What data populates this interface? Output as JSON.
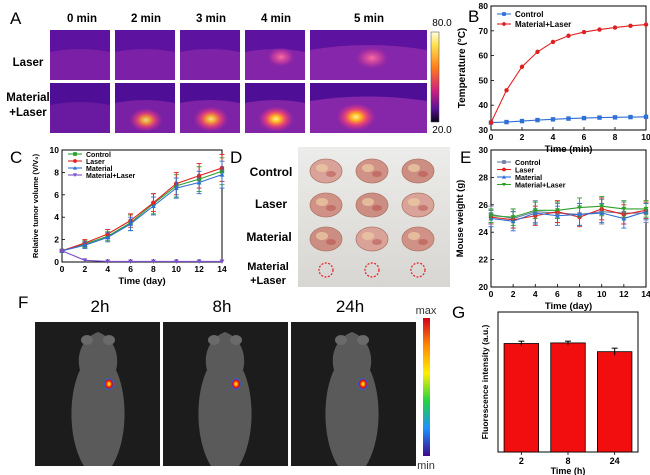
{
  "panel_letters": [
    "A",
    "B",
    "C",
    "D",
    "E",
    "F",
    "G"
  ],
  "panelA": {
    "time_labels": [
      "0 min",
      "2 min",
      "3 min",
      "4 min",
      "5 min"
    ],
    "row_labels": [
      [
        "Laser"
      ],
      [
        "Material",
        "+Laser"
      ]
    ],
    "colorbar": {
      "max": "80.0",
      "min": "20.0"
    }
  },
  "panelD": {
    "row_labels": [
      [
        "Control"
      ],
      [
        "Laser"
      ],
      [
        "Material"
      ],
      [
        "Material",
        "+Laser"
      ]
    ]
  },
  "panelF": {
    "time_labels": [
      "2h",
      "8h",
      "24h"
    ],
    "colorbar": {
      "max": "max",
      "min": "min"
    }
  },
  "chart_data": [
    {
      "panel": "B",
      "type": "line",
      "xlabel": "Time (min)",
      "ylabel": "Temperature (°C)",
      "xlim": [
        0,
        10
      ],
      "ylim": [
        30,
        80
      ],
      "xticks": [
        0,
        2,
        4,
        6,
        8,
        10
      ],
      "yticks": [
        30,
        40,
        50,
        60,
        70,
        80
      ],
      "legend": "top-left",
      "x": [
        0,
        1,
        2,
        3,
        4,
        5,
        6,
        7,
        8,
        9,
        10
      ],
      "series": [
        {
          "name": "Control",
          "color": "#2f6fd6",
          "marker": "square",
          "values": [
            33,
            33.2,
            33.6,
            34,
            34.3,
            34.6,
            34.8,
            35,
            35.1,
            35.2,
            35.3
          ]
        },
        {
          "name": "Material+Laser",
          "color": "#e02020",
          "marker": "circle",
          "values": [
            33,
            46,
            55.5,
            61.5,
            65.5,
            68,
            69.5,
            70.5,
            71.3,
            72,
            72.5
          ]
        }
      ]
    },
    {
      "panel": "C",
      "type": "line",
      "xlabel": "Time (day)",
      "ylabel": "Relative tumor volume (V/V₀)",
      "xlim": [
        0,
        14
      ],
      "ylim": [
        0,
        10
      ],
      "xticks": [
        0,
        2,
        4,
        6,
        8,
        10,
        12,
        14
      ],
      "yticks": [
        0,
        2,
        4,
        6,
        8,
        10
      ],
      "legend": "top-left",
      "x": [
        0,
        2,
        4,
        6,
        8,
        10,
        12,
        14
      ],
      "series": [
        {
          "name": "Control",
          "color": "#2ca02c",
          "marker": "square",
          "values": [
            1,
            1.6,
            2.3,
            3.5,
            5.2,
            6.8,
            7.4,
            8.1
          ],
          "errors": [
            0.1,
            0.3,
            0.4,
            0.7,
            0.9,
            1.0,
            1.1,
            1.2
          ]
        },
        {
          "name": "Laser",
          "color": "#e02020",
          "marker": "circle",
          "values": [
            1,
            1.7,
            2.5,
            3.7,
            5.3,
            7.0,
            7.7,
            8.4
          ],
          "errors": [
            0.1,
            0.3,
            0.4,
            0.6,
            0.8,
            1.0,
            1.1,
            1.2
          ]
        },
        {
          "name": "Material",
          "color": "#2f6fd6",
          "marker": "triangle",
          "values": [
            1,
            1.5,
            2.2,
            3.4,
            5.0,
            6.6,
            7.1,
            7.8
          ],
          "errors": [
            0.1,
            0.3,
            0.4,
            0.6,
            0.8,
            0.9,
            1.0,
            1.2
          ]
        },
        {
          "name": "Material+Laser",
          "color": "#7a4fc9",
          "marker": "triangle-down",
          "values": [
            1,
            0.15,
            0.05,
            0.05,
            0.05,
            0.05,
            0.05,
            0.05
          ],
          "errors": [
            0,
            0,
            0,
            0,
            0,
            0,
            0,
            0
          ]
        }
      ]
    },
    {
      "panel": "E",
      "type": "line",
      "xlabel": "Time (day)",
      "ylabel": "Mouse weight (g)",
      "xlim": [
        0,
        14
      ],
      "ylim": [
        20,
        30
      ],
      "xticks": [
        0,
        2,
        4,
        6,
        8,
        10,
        12,
        14
      ],
      "yticks": [
        20,
        22,
        24,
        26,
        28,
        30
      ],
      "legend": "top-left",
      "x": [
        0,
        2,
        4,
        6,
        8,
        10,
        12,
        14
      ],
      "series": [
        {
          "name": "Control",
          "color": "#6f7fa0",
          "marker": "square",
          "values": [
            25.3,
            25.0,
            25.5,
            25.4,
            25.3,
            25.5,
            25.4,
            25.4
          ],
          "errors": [
            0.6,
            0.7,
            0.8,
            0.7,
            0.8,
            0.9,
            0.8,
            0.7
          ]
        },
        {
          "name": "Laser",
          "color": "#e02020",
          "marker": "circle",
          "values": [
            25.1,
            24.9,
            25.2,
            25.5,
            25.1,
            25.7,
            25.3,
            25.6
          ],
          "errors": [
            0.5,
            0.6,
            0.7,
            0.8,
            0.7,
            0.8,
            0.7,
            0.6
          ]
        },
        {
          "name": "Material",
          "color": "#2f6fd6",
          "marker": "triangle",
          "values": [
            25.0,
            24.8,
            25.4,
            25.2,
            25.3,
            25.4,
            25.0,
            25.5
          ],
          "errors": [
            0.6,
            0.7,
            0.8,
            0.7,
            0.8,
            0.7,
            0.7,
            0.6
          ]
        },
        {
          "name": "Material+Laser",
          "color": "#2ca02c",
          "marker": "triangle-down",
          "values": [
            25.2,
            25.1,
            25.6,
            25.6,
            25.8,
            25.9,
            25.7,
            25.7
          ],
          "errors": [
            0.5,
            0.6,
            0.6,
            0.6,
            0.7,
            0.7,
            0.6,
            0.6
          ]
        }
      ]
    },
    {
      "panel": "G",
      "type": "bar",
      "xlabel": "Time (h)",
      "ylabel": "Fluorescence intensity (a.u.)",
      "categories": [
        "2",
        "8",
        "24"
      ],
      "values": [
        0.93,
        0.935,
        0.86
      ],
      "errors": [
        0.02,
        0.015,
        0.03
      ],
      "ylim": [
        0,
        1.2
      ],
      "color": "#f20e0e"
    }
  ]
}
